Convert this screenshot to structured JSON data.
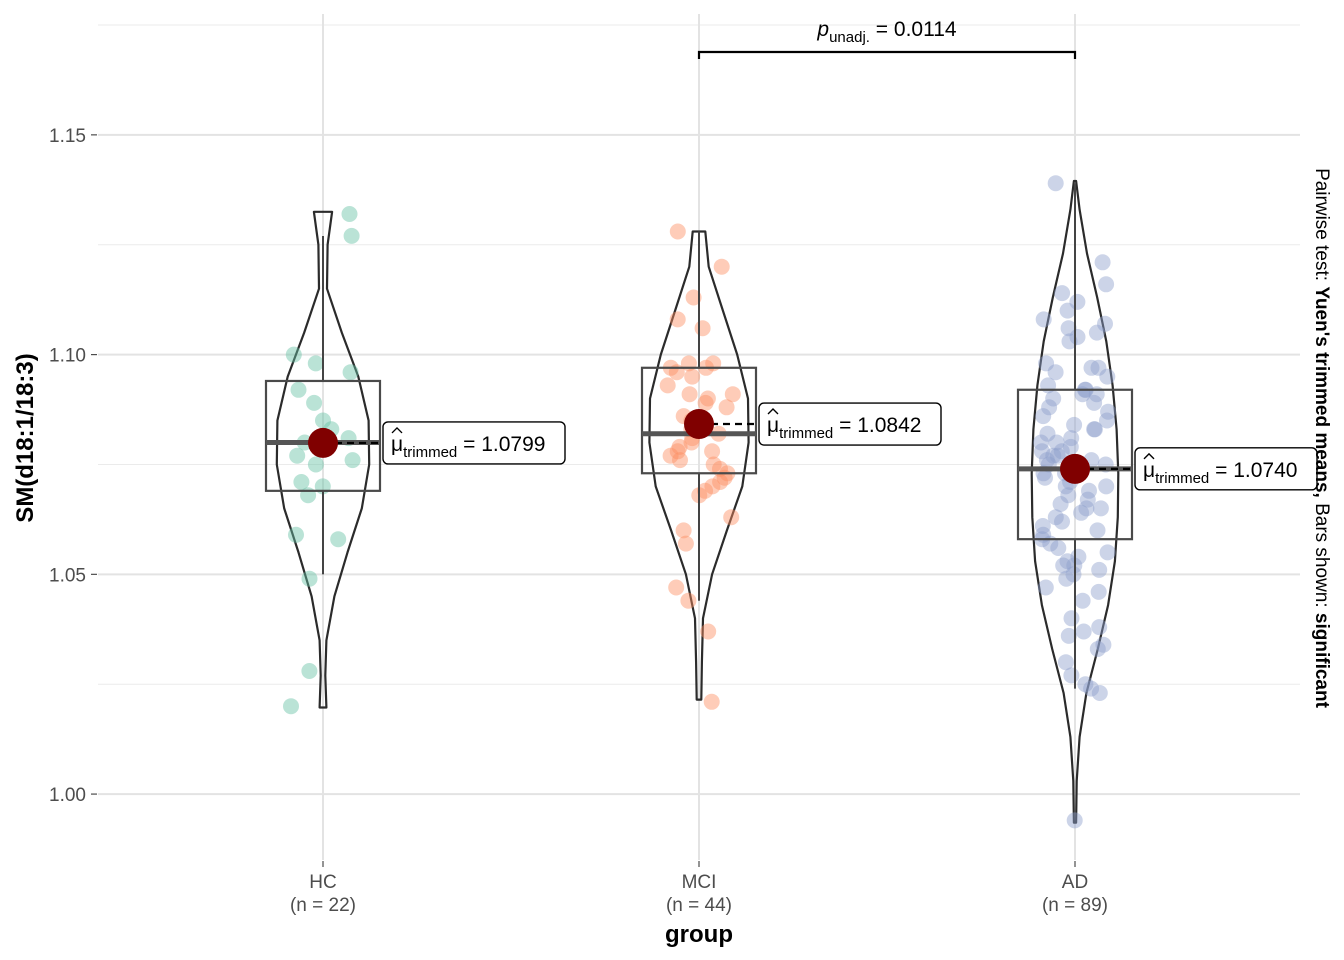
{
  "chart_data": {
    "type": "violin",
    "ylabel": "SM(d18:1/18:3)",
    "xlabel": "group",
    "ylim": [
      0.985,
      1.1775
    ],
    "yticks": [
      1.0,
      1.05,
      1.1,
      1.15
    ],
    "ytick_labels": [
      "1.00",
      "1.05",
      "1.10",
      "1.15"
    ],
    "grid": true,
    "caption_plain": "Pairwise test: ",
    "caption_bold1": "Yuen's trimmed means,",
    "caption_plain2": " Bars shown: ",
    "caption_bold2": "significant",
    "comparison": {
      "p_label": "p",
      "p_sub": "unadj.",
      "p_value": "= 0.0114",
      "from_group": 1,
      "to_group": 2,
      "y": 1.175
    },
    "mean_label_sym": "μ",
    "mean_label_sub": "trimmed",
    "mean_point_color": "#800000",
    "groups": [
      {
        "name": "HC",
        "n_label": "(n = 22)",
        "color": "#66c2a5",
        "trimmed_mean": 1.0799,
        "trimmed_mean_label": "= 1.0799",
        "box": {
          "q1": 1.069,
          "median": 1.08,
          "q3": 1.094,
          "whisker_low": 1.05,
          "whisker_high": 1.127
        },
        "violin": {
          "y": [
            1.0197,
            1.027,
            1.035,
            1.045,
            1.055,
            1.065,
            1.075,
            1.085,
            1.095,
            1.105,
            1.115,
            1.125,
            1.1325
          ],
          "w": [
            0.06,
            0.04,
            0.06,
            0.2,
            0.43,
            0.68,
            0.81,
            0.8,
            0.62,
            0.33,
            0.07,
            0.08,
            0.16
          ]
        },
        "points": [
          1.132,
          1.127,
          1.1,
          1.098,
          1.096,
          1.092,
          1.089,
          1.085,
          1.083,
          1.08,
          1.077,
          1.076,
          1.075,
          1.071,
          1.07,
          1.068,
          1.059,
          1.058,
          1.049,
          1.028,
          1.02,
          1.081
        ]
      },
      {
        "name": "MCI",
        "n_label": "(n = 44)",
        "color": "#fc8d62",
        "trimmed_mean": 1.0842,
        "trimmed_mean_label": "= 1.0842",
        "box": {
          "q1": 1.073,
          "median": 1.082,
          "q3": 1.097,
          "whisker_low": 1.044,
          "whisker_high": 1.128
        },
        "violin": {
          "y": [
            1.0215,
            1.03,
            1.04,
            1.05,
            1.06,
            1.07,
            1.08,
            1.09,
            1.1,
            1.11,
            1.12,
            1.128
          ],
          "w": [
            0.04,
            0.05,
            0.07,
            0.23,
            0.49,
            0.76,
            0.87,
            0.86,
            0.67,
            0.42,
            0.17,
            0.11
          ]
        },
        "points": [
          1.128,
          1.12,
          1.113,
          1.108,
          1.106,
          1.098,
          1.098,
          1.097,
          1.097,
          1.096,
          1.095,
          1.093,
          1.091,
          1.091,
          1.09,
          1.089,
          1.088,
          1.086,
          1.085,
          1.084,
          1.083,
          1.082,
          1.081,
          1.08,
          1.079,
          1.078,
          1.078,
          1.077,
          1.076,
          1.075,
          1.074,
          1.073,
          1.072,
          1.071,
          1.07,
          1.069,
          1.068,
          1.063,
          1.06,
          1.057,
          1.047,
          1.044,
          1.037,
          1.021
        ]
      },
      {
        "name": "AD",
        "n_label": "(n = 89)",
        "color": "#8da0cb",
        "trimmed_mean": 1.074,
        "trimmed_mean_label": "= 1.0740",
        "box": {
          "q1": 1.058,
          "median": 1.074,
          "q3": 1.092,
          "whisker_low": 1.024,
          "whisker_high": 1.139
        },
        "violin": {
          "y": [
            0.9935,
            1.003,
            1.013,
            1.023,
            1.033,
            1.043,
            1.053,
            1.063,
            1.073,
            1.083,
            1.093,
            1.103,
            1.113,
            1.123,
            1.133,
            1.1395
          ],
          "w": [
            0.02,
            0.03,
            0.08,
            0.2,
            0.4,
            0.58,
            0.7,
            0.75,
            0.76,
            0.73,
            0.66,
            0.55,
            0.39,
            0.21,
            0.08,
            0.02
          ]
        },
        "points": [
          1.139,
          1.121,
          1.116,
          1.114,
          1.112,
          1.11,
          1.108,
          1.107,
          1.106,
          1.105,
          1.104,
          1.103,
          1.098,
          1.097,
          1.097,
          1.096,
          1.095,
          1.093,
          1.092,
          1.092,
          1.091,
          1.091,
          1.09,
          1.089,
          1.088,
          1.087,
          1.086,
          1.085,
          1.084,
          1.083,
          1.083,
          1.082,
          1.081,
          1.08,
          1.08,
          1.079,
          1.078,
          1.078,
          1.077,
          1.077,
          1.076,
          1.076,
          1.075,
          1.075,
          1.074,
          1.073,
          1.073,
          1.072,
          1.071,
          1.07,
          1.07,
          1.069,
          1.068,
          1.067,
          1.066,
          1.065,
          1.065,
          1.064,
          1.063,
          1.062,
          1.061,
          1.06,
          1.059,
          1.058,
          1.057,
          1.056,
          1.055,
          1.054,
          1.053,
          1.052,
          1.052,
          1.051,
          1.05,
          1.049,
          1.047,
          1.046,
          1.044,
          1.04,
          1.038,
          1.037,
          1.036,
          1.034,
          1.033,
          1.03,
          1.027,
          1.025,
          1.024,
          1.023,
          0.994
        ]
      }
    ]
  }
}
